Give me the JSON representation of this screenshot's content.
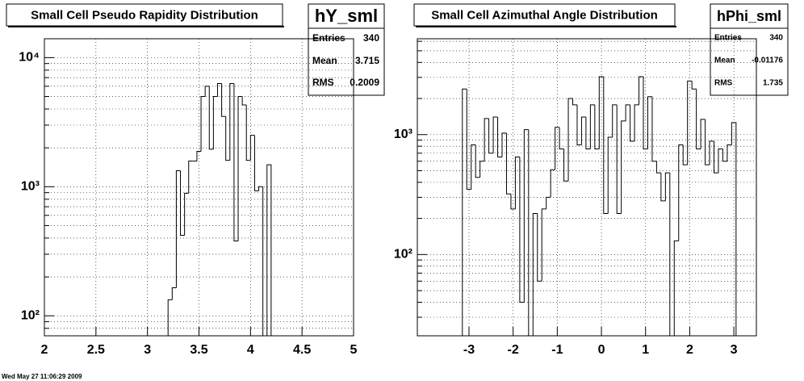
{
  "chart_data": [
    {
      "type": "histogram",
      "title": "Small Cell Pseudo Rapidity Distribution",
      "name": "hY_sml",
      "stats": [
        {
          "label": "Entries",
          "value": 340
        },
        {
          "label": "Mean",
          "value": 3.715
        },
        {
          "label": "RMS",
          "value": 0.2009
        }
      ],
      "bins": [
        3.2,
        3.24,
        3.28,
        3.32,
        3.36,
        3.4,
        3.44,
        3.48,
        3.52,
        3.56,
        3.6,
        3.64,
        3.68,
        3.72,
        3.76,
        3.8,
        3.84,
        3.88,
        3.92,
        3.96,
        4,
        4.04,
        4.08,
        4.12,
        4.16,
        4.2
      ],
      "values": [
        133,
        165,
        1330,
        420,
        890,
        1580,
        1580,
        1880,
        5000,
        6000,
        1950,
        5000,
        6300,
        3500,
        1600,
        6300,
        380,
        5000,
        4300,
        1600,
        2500,
        930,
        1000,
        null,
        1480
      ],
      "color": "#000000",
      "log_y": true,
      "grid": true,
      "xlim": [
        2,
        5
      ],
      "xticks": [
        2,
        2.5,
        3,
        3.5,
        4,
        4.5,
        5
      ],
      "ylim": [
        70,
        14000
      ],
      "yticks": [
        {
          "value": 100,
          "label": "10²"
        },
        {
          "value": 1000,
          "label": "10³"
        },
        {
          "value": 10000,
          "label": "10⁴"
        }
      ],
      "y_minor_ticks": [
        80,
        90,
        200,
        300,
        400,
        500,
        600,
        700,
        800,
        900,
        2000,
        3000,
        4000,
        5000,
        6000,
        7000,
        8000,
        9000
      ]
    },
    {
      "type": "histogram",
      "title": "Small Cell Azimuthal Angle Distribution",
      "name": "hPhi_sml",
      "stats": [
        {
          "label": "Entries",
          "value": 340
        },
        {
          "label": "Mean",
          "value": -0.01176
        },
        {
          "label": "RMS",
          "value": 1.735
        }
      ],
      "bins": [
        -3.15,
        -3.05,
        -2.95,
        -2.85,
        -2.75,
        -2.65,
        -2.55,
        -2.45,
        -2.35,
        -2.25,
        -2.15,
        -2.05,
        -1.95,
        -1.85,
        -1.75,
        -1.65,
        -1.55,
        -1.45,
        -1.35,
        -1.25,
        -1.15,
        -1.05,
        -0.95,
        -0.85,
        -0.75,
        -0.65,
        -0.55,
        -0.45,
        -0.35,
        -0.25,
        -0.15,
        -0.05,
        0.05,
        0.15,
        0.25,
        0.35,
        0.45,
        0.55,
        0.65,
        0.75,
        0.85,
        0.95,
        1.05,
        1.15,
        1.25,
        1.35,
        1.45,
        1.55,
        1.65,
        1.75,
        1.85,
        1.95,
        2.05,
        2.15,
        2.25,
        2.35,
        2.45,
        2.55,
        2.65,
        2.75,
        2.85,
        2.95,
        3.05
      ],
      "values": [
        2400,
        350,
        820,
        440,
        600,
        1360,
        700,
        1400,
        650,
        1030,
        320,
        240,
        650,
        40,
        1100,
        null,
        220,
        60,
        240,
        300,
        510,
        1150,
        760,
        410,
        2000,
        1770,
        820,
        1400,
        760,
        1770,
        760,
        3040,
        220,
        950,
        1770,
        220,
        1300,
        1770,
        880,
        1770,
        3040,
        760,
        2070,
        600,
        480,
        280,
        480,
        null,
        130,
        820,
        560,
        2800,
        2400,
        760,
        1340,
        560,
        880,
        480,
        760,
        600,
        820,
        1260
      ],
      "color": "#000000",
      "log_y": true,
      "grid": true,
      "xlim": [
        -4.17,
        3.51
      ],
      "xticks": [
        -3,
        -2,
        -1,
        0,
        1,
        2,
        3
      ],
      "ylim": [
        21,
        6300
      ],
      "yticks": [
        {
          "value": 100,
          "label": "10²"
        },
        {
          "value": 1000,
          "label": "10³"
        }
      ],
      "y_minor_ticks": [
        30,
        40,
        50,
        60,
        70,
        80,
        90,
        200,
        300,
        400,
        500,
        600,
        700,
        800,
        900,
        2000,
        3000,
        4000,
        5000,
        6000
      ]
    }
  ],
  "footer": "Wed May 27 11:06:29 2009"
}
